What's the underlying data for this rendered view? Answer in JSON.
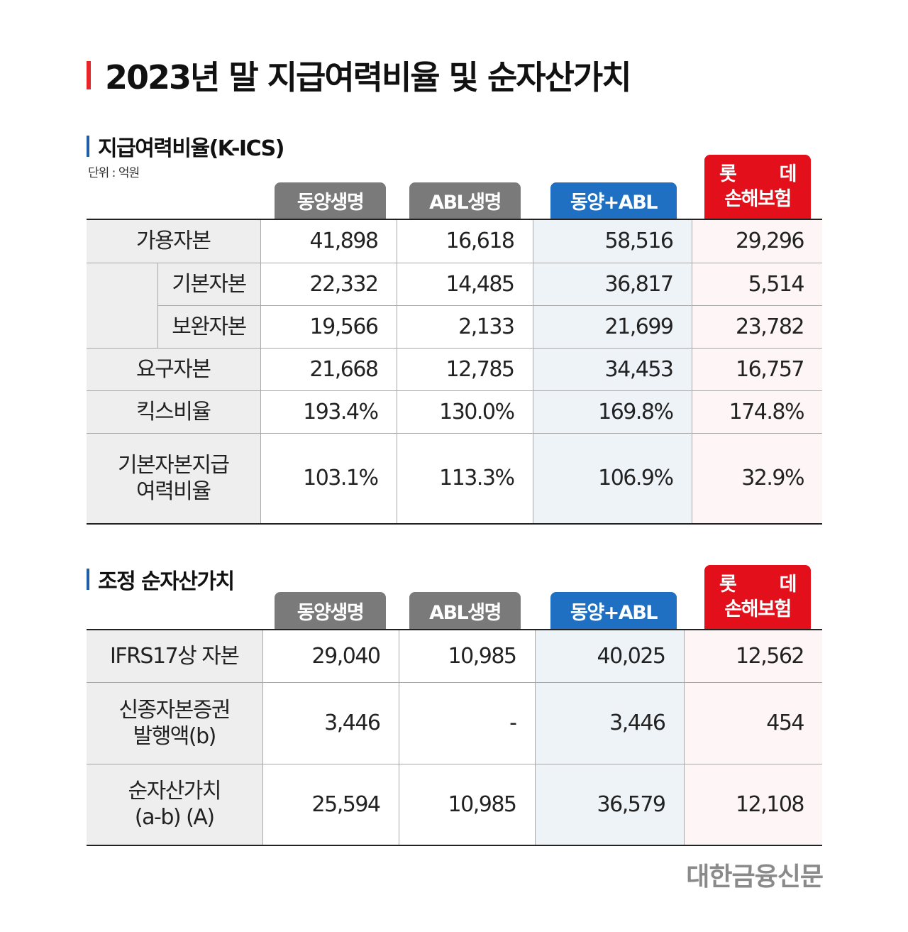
{
  "title": "2023년 말 지급여력비율 및 순자산가치",
  "sections": {
    "kics": {
      "title": "지급여력비율(K-ICS)",
      "unit": "단위 : 억원"
    },
    "nav": {
      "title": "조정 순자산가치"
    }
  },
  "columns": {
    "c1": "동양생명",
    "c2": "ABL생명",
    "c3": "동양+ABL",
    "c4_line1a": "롯",
    "c4_line1b": "데",
    "c4_line2": "손해보험"
  },
  "kics_table": {
    "r1": {
      "label": "가용자본",
      "v": [
        "41,898",
        "16,618",
        "58,516",
        "29,296"
      ]
    },
    "r2": {
      "label": "기본자본",
      "v": [
        "22,332",
        "14,485",
        "36,817",
        "5,514"
      ]
    },
    "r3": {
      "label": "보완자본",
      "v": [
        "19,566",
        "2,133",
        "21,699",
        "23,782"
      ]
    },
    "r4": {
      "label": "요구자본",
      "v": [
        "21,668",
        "12,785",
        "34,453",
        "16,757"
      ]
    },
    "r5": {
      "label": "킥스비율",
      "v": [
        "193.4%",
        "130.0%",
        "169.8%",
        "174.8%"
      ]
    },
    "r6": {
      "label_line1": "기본자본지급",
      "label_line2": "여력비율",
      "v": [
        "103.1%",
        "113.3%",
        "106.9%",
        "32.9%"
      ]
    }
  },
  "nav_table": {
    "r1": {
      "label": "IFRS17상 자본",
      "v": [
        "29,040",
        "10,985",
        "40,025",
        "12,562"
      ]
    },
    "r2": {
      "label_line1": "신종자본증권",
      "label_line2": "발행액(b)",
      "v": [
        "3,446",
        "-",
        "3,446",
        "454"
      ]
    },
    "r3": {
      "label_line1": "순자산가치",
      "label_line2": "(a-b) (A)",
      "v": [
        "25,594",
        "10,985",
        "36,579",
        "12,108"
      ]
    }
  },
  "colors": {
    "accent_red": "#e30f1b",
    "accent_blue": "#1f6fc2",
    "badge_gray": "#7a7a7a"
  },
  "footer": {
    "logo": "대한금융신문"
  }
}
